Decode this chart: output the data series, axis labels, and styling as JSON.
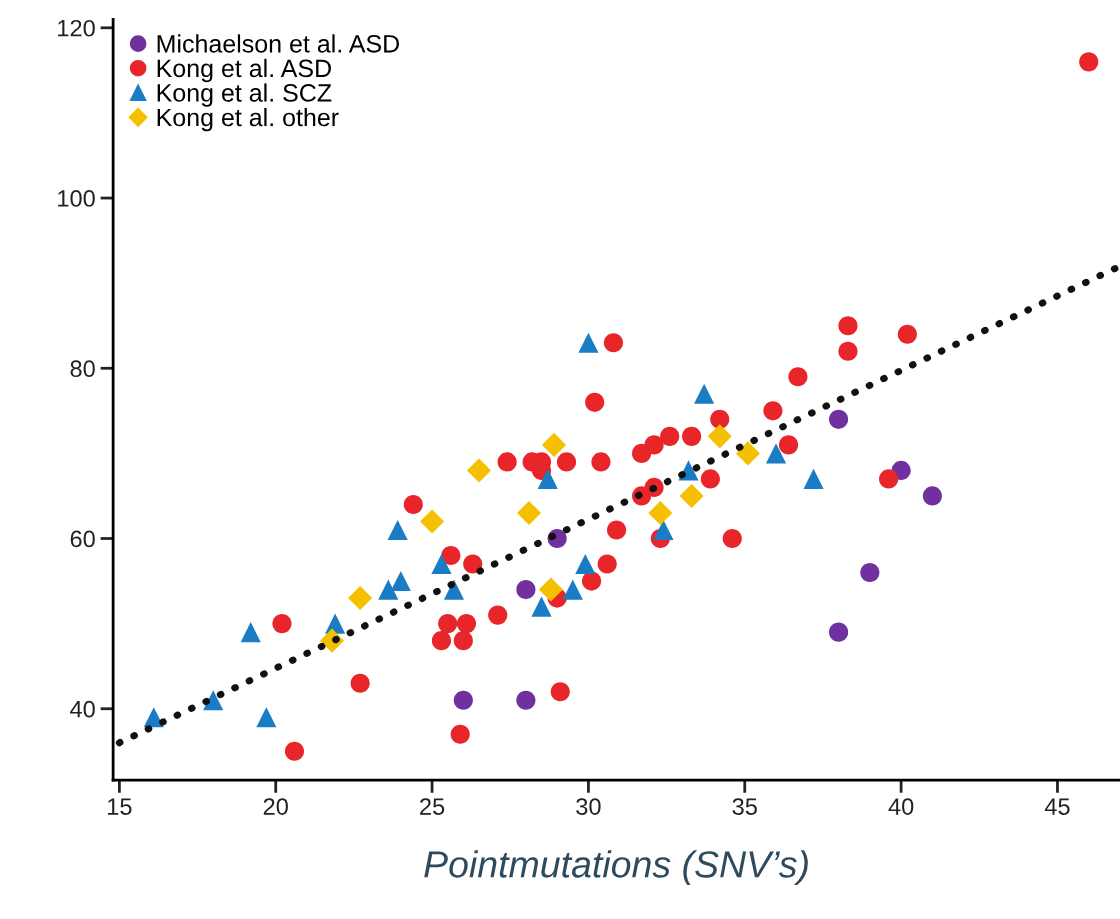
{
  "chart_data": {
    "type": "scatter",
    "xlabel": "Pointmutations (SNV’s)",
    "xlim": [
      14.8,
      47
    ],
    "xticks": [
      15,
      20,
      25,
      30,
      35,
      40,
      45
    ],
    "ylim": [
      31.6,
      121
    ],
    "yticks": [
      40,
      60,
      80,
      100,
      120
    ],
    "grid": false,
    "legend": "top left",
    "series": [
      {
        "name": "Michaelson et al. ASD",
        "color": "#7030a0",
        "marker": "circle",
        "x": [
          26,
          28,
          28,
          29,
          38,
          40,
          41,
          39,
          38
        ],
        "values": [
          41,
          41,
          54,
          60,
          74,
          68,
          65,
          56,
          49
        ]
      },
      {
        "name": "Kong et al. ASD",
        "color": "#e8262a",
        "marker": "circle",
        "x": [
          20.6,
          20.2,
          22.7,
          24.4,
          25.6,
          26.3,
          25.5,
          26.1,
          25.3,
          26.0,
          25.9,
          27.1,
          27.4,
          28.2,
          28.5,
          28.5,
          29.3,
          30.4,
          30.2,
          30.1,
          30.6,
          29.0,
          29.1,
          30.8,
          30.9,
          32.3,
          31.7,
          32.1,
          32.6,
          33.3,
          34.2,
          33.9,
          31.7,
          32.1,
          34.6,
          35.9,
          36.4,
          36.7,
          38.3,
          38.3,
          40.2,
          39.6,
          46.0
        ],
        "values": [
          35,
          50,
          43,
          64,
          58,
          57,
          50,
          50,
          48,
          48,
          37,
          51,
          69,
          69,
          69,
          68,
          69,
          69,
          76,
          55,
          57,
          53,
          42,
          83,
          61,
          60,
          70,
          71,
          72,
          72,
          74,
          67,
          65,
          66,
          60,
          75,
          71,
          79,
          85,
          82,
          84,
          67,
          116
        ]
      },
      {
        "name": "Kong et al. SCZ",
        "color": "#1a7cc4",
        "marker": "triangle",
        "x": [
          16.1,
          18,
          19.2,
          19.7,
          21.9,
          23.6,
          24,
          23.9,
          25.3,
          25.7,
          28.5,
          28.7,
          29.5,
          29.9,
          30,
          32.4,
          33.2,
          33.7,
          36,
          37.2
        ],
        "values": [
          39,
          41,
          49,
          39,
          50,
          54,
          55,
          61,
          57,
          54,
          52,
          67,
          54,
          57,
          83,
          61,
          68,
          77,
          70,
          67
        ]
      },
      {
        "name": "Kong et al. other",
        "color": "#f5c000",
        "marker": "diamond",
        "x": [
          21.8,
          22.7,
          25,
          26.5,
          28.1,
          28.9,
          28.8,
          34.2,
          35.1,
          33.3,
          32.3
        ],
        "values": [
          48,
          53,
          62,
          68,
          63,
          71,
          54,
          72,
          70,
          65,
          63
        ]
      },
      {
        "type": "line",
        "color": "#111111",
        "line_style": "dotted",
        "x": [
          15,
          47
        ],
        "values": [
          36,
          92
        ]
      }
    ]
  }
}
